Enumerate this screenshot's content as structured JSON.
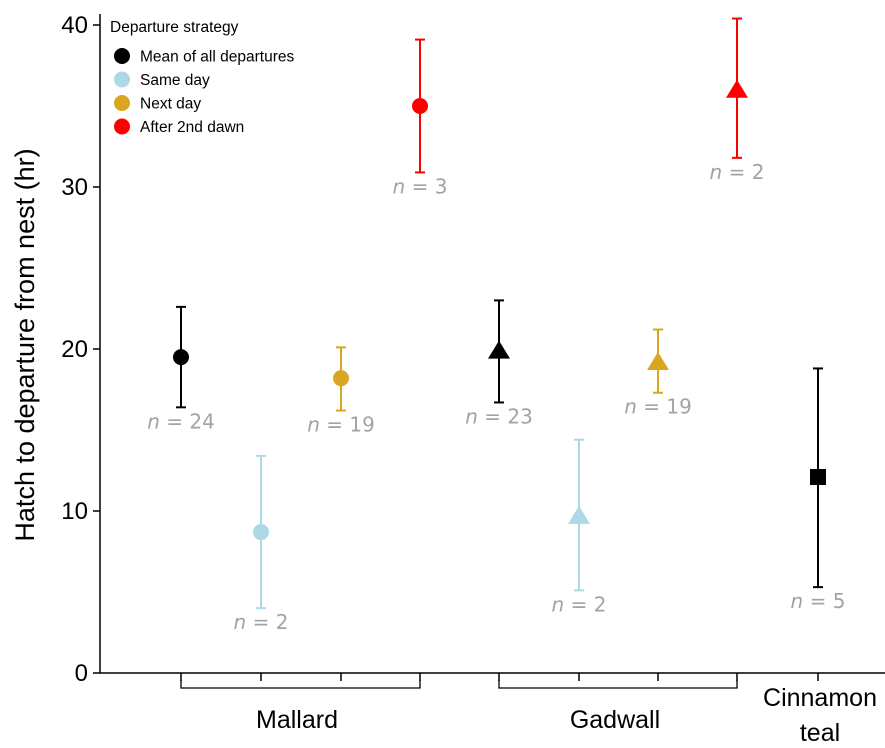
{
  "chart_data": {
    "type": "scatter",
    "ylabel": "Hatch to departure from nest (hr)",
    "ylim": [
      0,
      40
    ],
    "yticks": [
      0,
      10,
      20,
      30,
      40
    ],
    "grid": false,
    "legend": {
      "title": "Departure strategy",
      "placement": "top-left",
      "items": [
        {
          "label": "Mean of all departures",
          "color": "#000000"
        },
        {
          "label": "Same day",
          "color": "#add8e6"
        },
        {
          "label": "Next day",
          "color": "#daa520"
        },
        {
          "label": "After 2nd dawn",
          "color": "#ff0000"
        }
      ]
    },
    "groups": [
      {
        "name": "Mallard",
        "marker": "circle"
      },
      {
        "name": "Gadwall",
        "marker": "triangle"
      },
      {
        "name": "Cinnamon teal",
        "marker": "square"
      }
    ],
    "points": [
      {
        "group": "Mallard",
        "strategy": "Mean of all departures",
        "color": "#000000",
        "marker": "circle",
        "y": 19.5,
        "lower": 16.4,
        "upper": 22.6,
        "n": 24,
        "n_label": "n = 24"
      },
      {
        "group": "Mallard",
        "strategy": "Same day",
        "color": "#add8e6",
        "marker": "circle",
        "y": 8.7,
        "lower": 4.0,
        "upper": 13.4,
        "n": 2,
        "n_label": "n = 2"
      },
      {
        "group": "Mallard",
        "strategy": "Next day",
        "color": "#daa520",
        "marker": "circle",
        "y": 18.2,
        "lower": 16.2,
        "upper": 20.1,
        "n": 19,
        "n_label": "n = 19"
      },
      {
        "group": "Mallard",
        "strategy": "After 2nd dawn",
        "color": "#ff0000",
        "marker": "circle",
        "y": 35.0,
        "lower": 30.9,
        "upper": 39.1,
        "n": 3,
        "n_label": "n = 3"
      },
      {
        "group": "Gadwall",
        "strategy": "Mean of all departures",
        "color": "#000000",
        "marker": "triangle",
        "y": 19.9,
        "lower": 16.7,
        "upper": 23.0,
        "n": 23,
        "n_label": "n = 23"
      },
      {
        "group": "Gadwall",
        "strategy": "Same day",
        "color": "#add8e6",
        "marker": "triangle",
        "y": 9.7,
        "lower": 5.1,
        "upper": 14.4,
        "n": 2,
        "n_label": "n = 2"
      },
      {
        "group": "Gadwall",
        "strategy": "Next day",
        "color": "#daa520",
        "marker": "triangle",
        "y": 19.2,
        "lower": 17.3,
        "upper": 21.2,
        "n": 19,
        "n_label": "n = 19"
      },
      {
        "group": "Gadwall",
        "strategy": "After 2nd dawn",
        "color": "#ff0000",
        "marker": "triangle",
        "y": 36.0,
        "lower": 31.8,
        "upper": 40.4,
        "n": 2,
        "n_label": "n = 2"
      },
      {
        "group": "Cinnamon teal",
        "strategy": "Mean of all departures",
        "color": "#000000",
        "marker": "square",
        "y": 12.1,
        "lower": 5.3,
        "upper": 18.8,
        "n": 5,
        "n_label": "n = 5"
      }
    ]
  }
}
